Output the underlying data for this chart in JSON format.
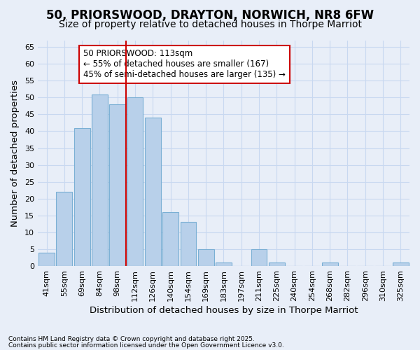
{
  "title1": "50, PRIORSWOOD, DRAYTON, NORWICH, NR8 6FW",
  "title2": "Size of property relative to detached houses in Thorpe Marriot",
  "xlabel": "Distribution of detached houses by size in Thorpe Marriot",
  "ylabel": "Number of detached properties",
  "categories": [
    "41sqm",
    "55sqm",
    "69sqm",
    "84sqm",
    "98sqm",
    "112sqm",
    "126sqm",
    "140sqm",
    "154sqm",
    "169sqm",
    "183sqm",
    "197sqm",
    "211sqm",
    "225sqm",
    "240sqm",
    "254sqm",
    "268sqm",
    "282sqm",
    "296sqm",
    "310sqm",
    "325sqm"
  ],
  "values": [
    4,
    22,
    41,
    51,
    48,
    50,
    44,
    16,
    13,
    5,
    1,
    0,
    5,
    1,
    0,
    0,
    1,
    0,
    0,
    0,
    1
  ],
  "bar_color": "#b8d0ea",
  "bar_edge_color": "#7aafd4",
  "highlight_bar_index": 5,
  "highlight_line_color": "#cc0000",
  "annotation_text": "50 PRIORSWOOD: 113sqm\n← 55% of detached houses are smaller (167)\n45% of semi-detached houses are larger (135) →",
  "annotation_box_color": "#ffffff",
  "annotation_box_edge_color": "#cc0000",
  "ylim": [
    0,
    67
  ],
  "yticks": [
    0,
    5,
    10,
    15,
    20,
    25,
    30,
    35,
    40,
    45,
    50,
    55,
    60,
    65
  ],
  "footer1": "Contains HM Land Registry data © Crown copyright and database right 2025.",
  "footer2": "Contains public sector information licensed under the Open Government Licence v3.0.",
  "bg_color": "#e8eef8",
  "plot_bg_color": "#e8eef8",
  "grid_color": "#c8d8f0",
  "title_fontsize": 12,
  "subtitle_fontsize": 10,
  "tick_fontsize": 8,
  "label_fontsize": 9.5,
  "annotation_fontsize": 8.5
}
